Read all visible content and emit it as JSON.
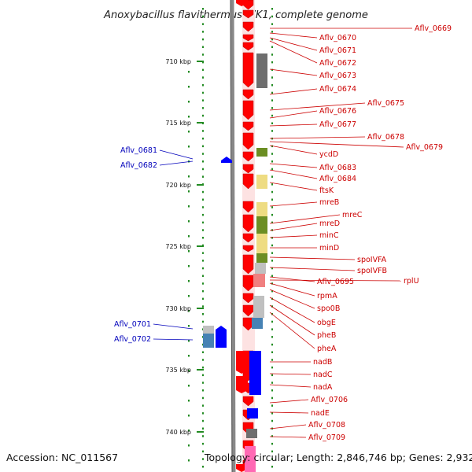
{
  "title": "Anoxybacillus flavithermus WK1, complete genome",
  "footer": {
    "accession": "Accession: NC_011567",
    "topology": "Topology: circular; Length: 2,846,746 bp; Genes: 2,932"
  },
  "ticks": [
    "710 kbp",
    "715 kbp",
    "720 kbp",
    "725 kbp",
    "730 kbp",
    "735 kbp",
    "740 kbp"
  ],
  "right_labels": [
    "Aflv_0669",
    "Aflv_0670",
    "Aflv_0671",
    "Aflv_0672",
    "Aflv_0673",
    "Aflv_0674",
    "Aflv_0675",
    "Aflv_0676",
    "Aflv_0677",
    "Aflv_0678",
    "Aflv_0679",
    "ycdD",
    "Aflv_0683",
    "Aflv_0684",
    "ftsK",
    "mreB",
    "mreC",
    "mreD",
    "minC",
    "minD",
    "spoIVFA",
    "spoIVFB",
    "Aflv_0695",
    "rplU",
    "rpmA",
    "spo0B",
    "obgE",
    "pheB",
    "pheA",
    "nadB",
    "nadC",
    "nadA",
    "Aflv_0706",
    "nadE",
    "Aflv_0708",
    "Aflv_0709"
  ],
  "left_labels": [
    "Aflv_0681",
    "Aflv_0682",
    "Aflv_0701",
    "Aflv_0702"
  ],
  "colors": {
    "forward_gene": "#ff0000",
    "reverse_gene": "#0000ff",
    "backbone": "#888888",
    "tick": "#228b22",
    "label_right": "#cc0000",
    "label_left": "#0000bb",
    "cog_gray": "#6e6e6e",
    "cog_olive": "#6b8e23",
    "cog_yellow": "#eedc82",
    "cog_lightgray": "#c0c0c0",
    "cog_steel": "#4682b4",
    "cog_blue": "#0000ff",
    "cog_pink": "#ff69b4",
    "cog_salmon": "#f08080"
  }
}
